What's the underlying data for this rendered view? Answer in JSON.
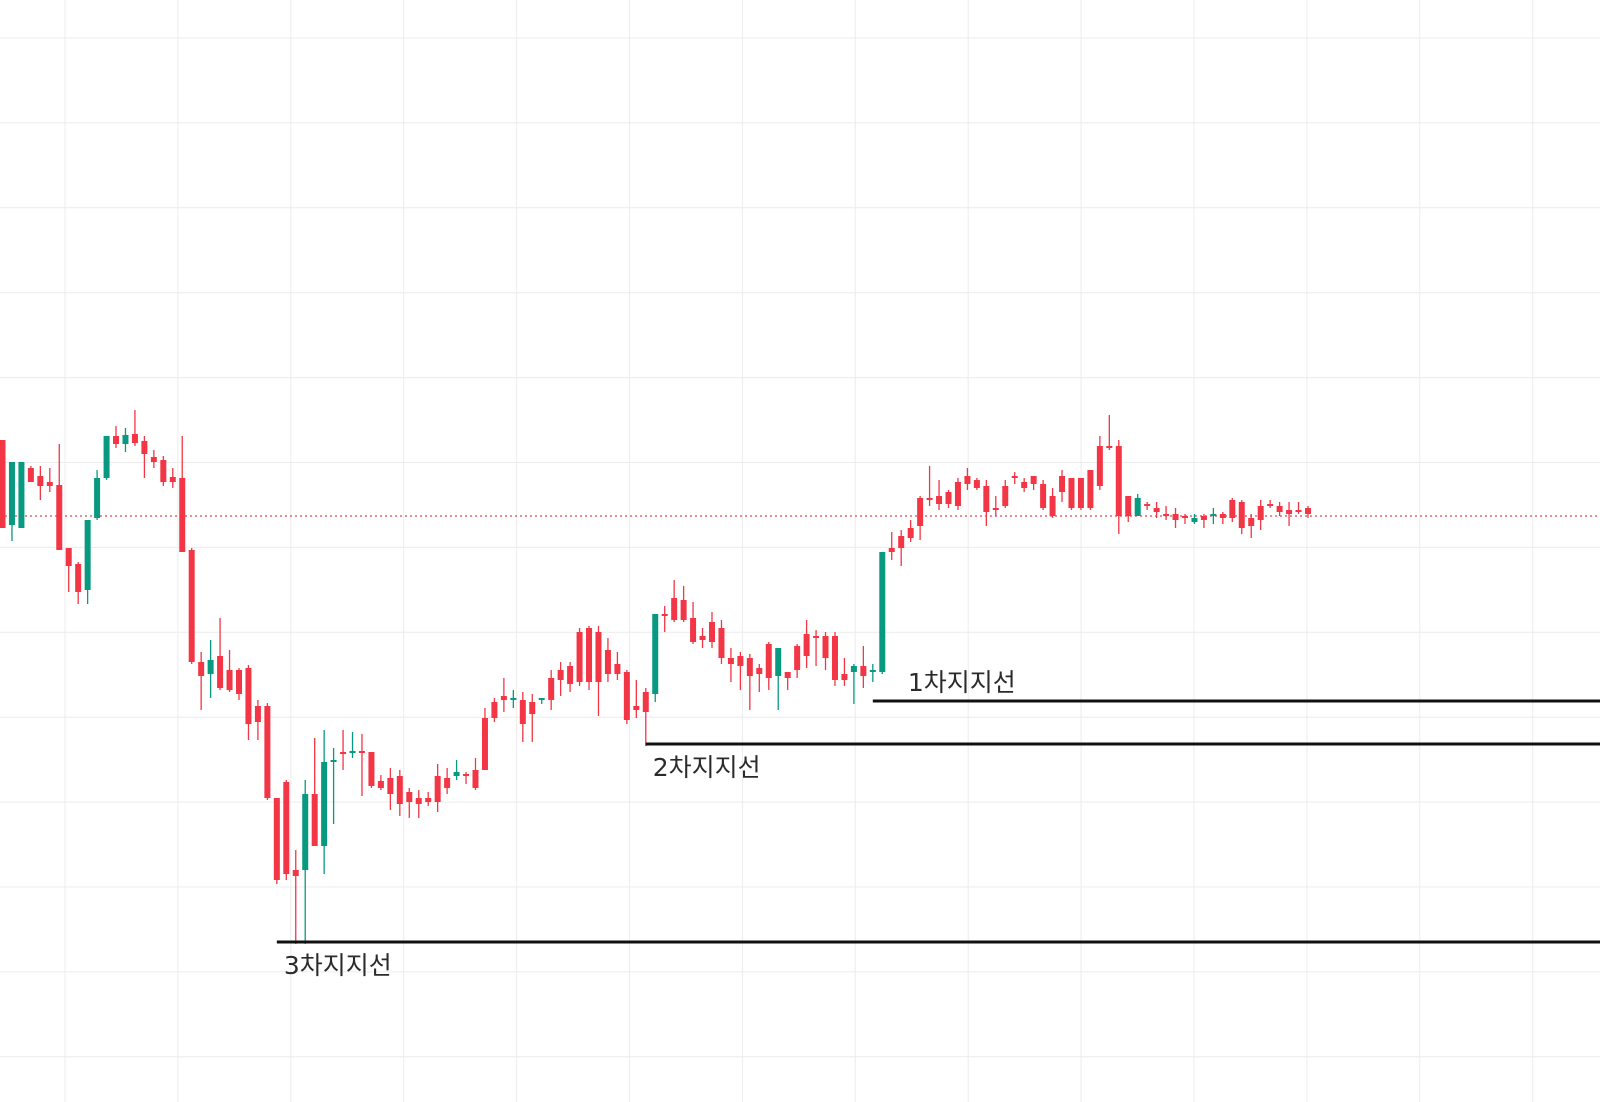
{
  "chart_data": {
    "type": "candlestick",
    "title": "",
    "xlabel": "",
    "ylabel": "",
    "grid": true,
    "y_range": [
      0,
      1102
    ],
    "colors": {
      "up": "#089981",
      "down": "#f23645",
      "grid": "#ececec",
      "support_line": "#111111",
      "current_price_line": "#e0474c"
    },
    "current_price": 516,
    "support_levels": [
      {
        "name": "1차지지선",
        "value": 701,
        "start_index": 92
      },
      {
        "name": "2차지지선",
        "value": 744,
        "start_index": 68
      },
      {
        "name": "3차지지선",
        "value": 942,
        "start_index": 29
      }
    ],
    "candles": [
      [
        440,
        440,
        528,
        520
      ],
      [
        465,
        525,
        462,
        541
      ],
      [
        466,
        528,
        462,
        525
      ],
      [
        466,
        468,
        482,
        478
      ],
      [
        466,
        476,
        486,
        500
      ],
      [
        468,
        482,
        486,
        492
      ],
      [
        444,
        485,
        550,
        548
      ],
      [
        548,
        548,
        566,
        592
      ],
      [
        562,
        564,
        592,
        604
      ],
      [
        520,
        590,
        520,
        604
      ],
      [
        470,
        518,
        478,
        520
      ],
      [
        436,
        478,
        436,
        480
      ],
      [
        426,
        436,
        444,
        448
      ],
      [
        428,
        444,
        435,
        452
      ],
      [
        410,
        434,
        443,
        446
      ],
      [
        436,
        441,
        454,
        478
      ],
      [
        450,
        457,
        462,
        468
      ],
      [
        456,
        460,
        482,
        486
      ],
      [
        468,
        477,
        482,
        488
      ],
      [
        436,
        478,
        552,
        552
      ],
      [
        548,
        550,
        662,
        664
      ],
      [
        652,
        662,
        676,
        710
      ],
      [
        640,
        674,
        660,
        698
      ],
      [
        618,
        656,
        688,
        690
      ],
      [
        650,
        670,
        690,
        692
      ],
      [
        668,
        670,
        694,
        700
      ],
      [
        665,
        668,
        724,
        740
      ],
      [
        700,
        706,
        722,
        740
      ],
      [
        703,
        706,
        798,
        800
      ],
      [
        798,
        798,
        880,
        884
      ],
      [
        780,
        782,
        874,
        880
      ],
      [
        850,
        870,
        876,
        944
      ],
      [
        780,
        870,
        794,
        944
      ],
      [
        738,
        794,
        846,
        846
      ],
      [
        730,
        846,
        762,
        874
      ],
      [
        748,
        762,
        760,
        824
      ],
      [
        730,
        752,
        752,
        770
      ],
      [
        732,
        752,
        751,
        758
      ],
      [
        734,
        751,
        751,
        796
      ],
      [
        752,
        752,
        786,
        788
      ],
      [
        775,
        781,
        788,
        790
      ],
      [
        768,
        778,
        794,
        810
      ],
      [
        770,
        776,
        804,
        816
      ],
      [
        788,
        792,
        802,
        818
      ],
      [
        790,
        798,
        804,
        818
      ],
      [
        792,
        798,
        802,
        806
      ],
      [
        764,
        776,
        802,
        812
      ],
      [
        768,
        778,
        788,
        794
      ],
      [
        760,
        776,
        772,
        780
      ],
      [
        772,
        774,
        776,
        784
      ],
      [
        758,
        770,
        788,
        790
      ],
      [
        708,
        718,
        770,
        770
      ],
      [
        698,
        702,
        718,
        722
      ],
      [
        678,
        696,
        700,
        712
      ],
      [
        690,
        700,
        698,
        708
      ],
      [
        692,
        700,
        724,
        742
      ],
      [
        694,
        702,
        714,
        742
      ],
      [
        698,
        700,
        698,
        704
      ],
      [
        670,
        678,
        700,
        710
      ],
      [
        662,
        670,
        680,
        696
      ],
      [
        662,
        666,
        684,
        692
      ],
      [
        628,
        632,
        682,
        686
      ],
      [
        626,
        628,
        682,
        690
      ],
      [
        626,
        632,
        682,
        716
      ],
      [
        638,
        650,
        674,
        682
      ],
      [
        652,
        664,
        674,
        680
      ],
      [
        670,
        672,
        720,
        724
      ],
      [
        680,
        706,
        710,
        718
      ],
      [
        688,
        692,
        712,
        746
      ],
      [
        614,
        694,
        614,
        702
      ],
      [
        606,
        614,
        616,
        632
      ],
      [
        580,
        598,
        620,
        622
      ],
      [
        586,
        600,
        620,
        622
      ],
      [
        602,
        618,
        642,
        644
      ],
      [
        628,
        636,
        640,
        648
      ],
      [
        612,
        622,
        642,
        648
      ],
      [
        620,
        628,
        658,
        664
      ],
      [
        648,
        658,
        664,
        682
      ],
      [
        652,
        656,
        666,
        690
      ],
      [
        654,
        658,
        676,
        710
      ],
      [
        664,
        668,
        674,
        692
      ],
      [
        642,
        644,
        678,
        690
      ],
      [
        648,
        676,
        648,
        710
      ],
      [
        672,
        672,
        678,
        690
      ],
      [
        644,
        646,
        670,
        678
      ],
      [
        620,
        634,
        656,
        668
      ],
      [
        630,
        636,
        636,
        666
      ],
      [
        632,
        636,
        658,
        670
      ],
      [
        632,
        636,
        680,
        686
      ],
      [
        658,
        674,
        680,
        686
      ],
      [
        664,
        672,
        666,
        704
      ],
      [
        646,
        666,
        676,
        688
      ],
      [
        664,
        672,
        670,
        682
      ],
      [
        552,
        672,
        552,
        674
      ],
      [
        532,
        548,
        552,
        560
      ],
      [
        530,
        536,
        548,
        566
      ],
      [
        520,
        528,
        538,
        542
      ],
      [
        496,
        498,
        526,
        540
      ],
      [
        466,
        498,
        500,
        506
      ],
      [
        480,
        496,
        504,
        510
      ],
      [
        490,
        492,
        504,
        508
      ],
      [
        478,
        482,
        506,
        510
      ],
      [
        468,
        476,
        484,
        490
      ],
      [
        478,
        480,
        488,
        490
      ],
      [
        480,
        486,
        512,
        526
      ],
      [
        496,
        508,
        510,
        516
      ],
      [
        480,
        486,
        506,
        508
      ],
      [
        472,
        476,
        478,
        484
      ],
      [
        478,
        482,
        488,
        492
      ],
      [
        476,
        476,
        484,
        490
      ],
      [
        480,
        484,
        508,
        510
      ],
      [
        488,
        496,
        516,
        518
      ],
      [
        470,
        476,
        492,
        502
      ],
      [
        478,
        478,
        508,
        510
      ],
      [
        478,
        478,
        508,
        510
      ],
      [
        470,
        470,
        508,
        510
      ],
      [
        436,
        446,
        486,
        490
      ],
      [
        415,
        446,
        446,
        450
      ],
      [
        440,
        446,
        516,
        534
      ],
      [
        496,
        496,
        516,
        522
      ],
      [
        494,
        516,
        498,
        516
      ],
      [
        502,
        504,
        506,
        510
      ],
      [
        502,
        508,
        512,
        518
      ],
      [
        506,
        514,
        514,
        520
      ],
      [
        508,
        514,
        520,
        528
      ],
      [
        514,
        516,
        518,
        524
      ],
      [
        514,
        522,
        518,
        524
      ],
      [
        514,
        516,
        520,
        528
      ],
      [
        508,
        516,
        514,
        524
      ],
      [
        512,
        514,
        518,
        524
      ],
      [
        498,
        500,
        518,
        522
      ],
      [
        500,
        502,
        528,
        534
      ],
      [
        514,
        518,
        526,
        538
      ],
      [
        500,
        506,
        520,
        530
      ],
      [
        500,
        504,
        506,
        508
      ],
      [
        502,
        506,
        512,
        516
      ],
      [
        502,
        510,
        514,
        526
      ],
      [
        502,
        510,
        512,
        514
      ],
      [
        506,
        508,
        514,
        518
      ]
    ]
  }
}
